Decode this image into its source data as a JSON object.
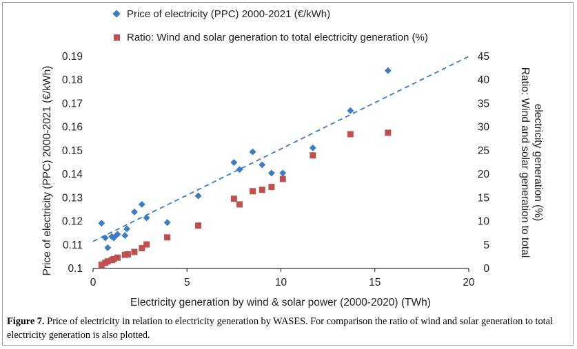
{
  "chart_data": {
    "type": "scatter",
    "xlabel": "Electricity generation by wind & solar power (2000-2020) (TWh)",
    "ylabel": "Price of electricity (PPC) 2000-2021  (€/kWh)",
    "y2label_line1": "Ratio: Wind and solar generation to total",
    "y2label_line2": "electricity generation (%)",
    "xlim": [
      0,
      20
    ],
    "ylim": [
      0.1,
      0.19
    ],
    "y2lim": [
      0,
      45
    ],
    "xticks": [
      "0",
      "5",
      "10",
      "15",
      "20"
    ],
    "yticks": [
      "0.1",
      "0.11",
      "0.12",
      "0.13",
      "0.14",
      "0.15",
      "0.16",
      "0.17",
      "0.18",
      "0.19"
    ],
    "y2ticks": [
      "0",
      "5",
      "10",
      "15",
      "20",
      "25",
      "30",
      "35",
      "40",
      "45"
    ],
    "legend_position": "top-left",
    "series": [
      {
        "name": "Price of electricity (PPC) 2000-2021  (€/kWh)",
        "axis": "left",
        "marker": "diamond",
        "color": "#3c7cc4",
        "points": [
          [
            0.45,
            0.1192
          ],
          [
            0.65,
            0.113
          ],
          [
            0.78,
            0.1088
          ],
          [
            1.0,
            0.1135
          ],
          [
            1.1,
            0.113
          ],
          [
            1.2,
            0.1138
          ],
          [
            1.3,
            0.1145
          ],
          [
            1.7,
            0.114
          ],
          [
            1.8,
            0.1168
          ],
          [
            2.2,
            0.124
          ],
          [
            2.6,
            0.1272
          ],
          [
            2.85,
            0.1215
          ],
          [
            3.95,
            0.1195
          ],
          [
            5.6,
            0.1308
          ],
          [
            7.5,
            0.145
          ],
          [
            7.8,
            0.142
          ],
          [
            8.5,
            0.1495
          ],
          [
            9.0,
            0.144
          ],
          [
            9.5,
            0.1405
          ],
          [
            10.1,
            0.1405
          ],
          [
            11.7,
            0.1512
          ],
          [
            13.7,
            0.167
          ],
          [
            15.7,
            0.184
          ]
        ]
      },
      {
        "name": "Ratio: Wind and solar generation to total electricity generation (%)",
        "axis": "right",
        "marker": "square",
        "color": "#c0504d",
        "points": [
          [
            0.45,
            0.8
          ],
          [
            0.65,
            1.2
          ],
          [
            0.78,
            1.5
          ],
          [
            1.0,
            1.8
          ],
          [
            1.1,
            2.0
          ],
          [
            1.3,
            2.3
          ],
          [
            1.7,
            2.9
          ],
          [
            1.85,
            3.0
          ],
          [
            2.2,
            3.5
          ],
          [
            2.6,
            4.3
          ],
          [
            2.85,
            5.1
          ],
          [
            3.95,
            6.6
          ],
          [
            5.6,
            9.1
          ],
          [
            7.5,
            14.8
          ],
          [
            7.8,
            13.6
          ],
          [
            8.5,
            16.4
          ],
          [
            9.0,
            16.7
          ],
          [
            9.5,
            17.3
          ],
          [
            10.1,
            19.0
          ],
          [
            11.7,
            24.0
          ],
          [
            13.7,
            28.5
          ],
          [
            15.7,
            28.8
          ]
        ]
      }
    ],
    "trendline": {
      "series": "price",
      "style": "dashed",
      "color": "#3c7cc4",
      "x": [
        0,
        20
      ],
      "y": [
        0.1115,
        0.19
      ]
    }
  },
  "caption": {
    "label": "Figure 7.",
    "text": " Price of electricity in relation to electricity generation by WASES. For comparison the ratio of wind and solar generation to total electricity generation is also plotted."
  }
}
